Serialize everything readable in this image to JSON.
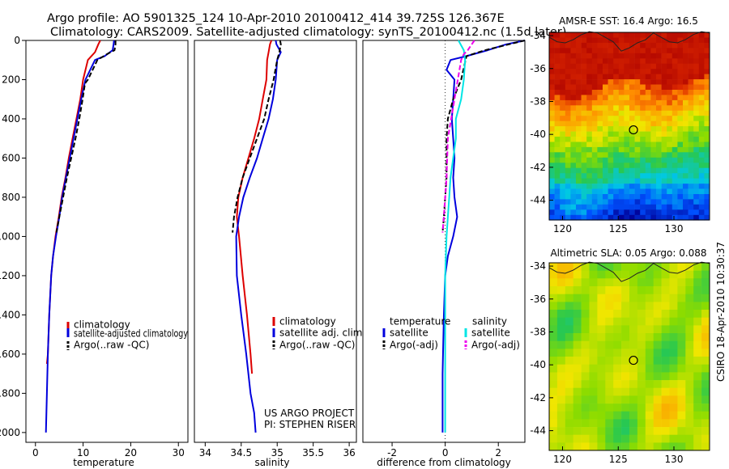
{
  "figure": {
    "title_line1": "Argo profile: AO 5901325_124 10-Apr-2010 20100412_414 39.725S 126.367E",
    "title_line2": "Climatology: CARS2009. Satellite-adjusted climatology: synTS_20100412.nc (1.5d later)",
    "credit_project": "US ARGO PROJECT",
    "credit_pi": "PI: STEPHEN RISER",
    "timestamp": "CSIRO 18-Apr-2010 10:30:37"
  },
  "colors": {
    "climatology": "#dd0000",
    "satellite": "#0000dd",
    "argo": "#000000",
    "sal_satellite": "#00e5e5",
    "sal_argo": "#ee00ee"
  },
  "chart_data": [
    {
      "type": "line",
      "id": "temperature",
      "xlabel": "temperature",
      "xlim": [
        -2,
        32
      ],
      "ylim": [
        2050,
        0
      ],
      "xticks": [
        "0",
        "10",
        "20",
        "30"
      ],
      "xtick_values": [
        0,
        10,
        20,
        30
      ],
      "yticks": [
        "0",
        "200",
        "400",
        "600",
        "800",
        "1000",
        "1200",
        "1400",
        "1600",
        "1800",
        "2000"
      ],
      "ytick_values": [
        0,
        200,
        400,
        600,
        800,
        1000,
        1200,
        1400,
        1600,
        1800,
        2000
      ],
      "legend": [
        "climatology",
        "satellite-adjusted climatology",
        "Argo(..raw -QC)"
      ],
      "series": [
        {
          "name": "climatology",
          "color": "climatology",
          "dash": false,
          "x": [
            13.6,
            13.2,
            12.5,
            11.0,
            10.0,
            9.4,
            8.6,
            7.8,
            7.0,
            6.3,
            5.5,
            4.9,
            4.2,
            3.7,
            3.3,
            2.9,
            2.6,
            2.4
          ],
          "y": [
            0,
            20,
            60,
            100,
            200,
            300,
            400,
            500,
            600,
            700,
            800,
            900,
            1000,
            1100,
            1200,
            1400,
            1600,
            1650
          ]
        },
        {
          "name": "satellite",
          "color": "satellite",
          "dash": false,
          "x": [
            16.5,
            16.4,
            16.2,
            14.5,
            12.5,
            10.5,
            9.6,
            8.8,
            8.0,
            7.2,
            6.4,
            5.6,
            5.0,
            4.3,
            3.7,
            3.3,
            2.9,
            2.6,
            2.4,
            2.2
          ],
          "y": [
            0,
            20,
            50,
            80,
            100,
            200,
            300,
            400,
            500,
            600,
            700,
            800,
            900,
            1000,
            1100,
            1200,
            1400,
            1600,
            1800,
            2000
          ]
        },
        {
          "name": "argo",
          "color": "argo",
          "dash": true,
          "x": [
            16.8,
            16.8,
            16.6,
            15.0,
            13.0,
            11.0,
            10.4,
            9.9,
            9.2,
            8.4,
            7.5,
            6.6,
            5.8,
            5.0,
            4.4
          ],
          "y": [
            0,
            20,
            50,
            70,
            100,
            200,
            220,
            300,
            400,
            500,
            600,
            700,
            800,
            900,
            980
          ]
        }
      ]
    },
    {
      "type": "line",
      "id": "salinity",
      "xlabel": "salinity",
      "xlim": [
        33.85,
        36.1
      ],
      "ylim": [
        2050,
        0
      ],
      "xticks": [
        "34",
        "34.5",
        "35",
        "35.5",
        "36"
      ],
      "xtick_values": [
        34,
        34.5,
        35,
        35.5,
        36
      ],
      "legend": [
        "climatology",
        "satellite adj. clim.",
        "Argo(..raw -QC)"
      ],
      "series": [
        {
          "name": "climatology",
          "color": "climatology",
          "dash": false,
          "x": [
            34.92,
            34.9,
            34.88,
            34.86,
            34.85,
            34.8,
            34.75,
            34.68,
            34.6,
            34.52,
            34.46,
            34.44,
            34.47,
            34.52,
            34.58,
            34.63,
            34.65
          ],
          "y": [
            0,
            20,
            60,
            100,
            200,
            300,
            400,
            500,
            600,
            700,
            800,
            900,
            1000,
            1200,
            1400,
            1600,
            1700
          ]
        },
        {
          "name": "satellite",
          "color": "satellite",
          "dash": false,
          "x": [
            34.98,
            34.99,
            35.05,
            35.0,
            34.98,
            34.94,
            34.88,
            34.8,
            34.72,
            34.62,
            34.53,
            34.47,
            34.43,
            34.44,
            34.5,
            34.57,
            34.63,
            34.68,
            34.7
          ],
          "y": [
            0,
            20,
            60,
            100,
            200,
            300,
            400,
            500,
            600,
            700,
            800,
            900,
            1000,
            1200,
            1400,
            1600,
            1800,
            1900,
            2000
          ]
        },
        {
          "name": "argo",
          "color": "argo",
          "dash": true,
          "x": [
            35.04,
            35.05,
            35.03,
            35.0,
            34.95,
            34.88,
            34.82,
            34.72,
            34.62,
            34.52,
            34.45,
            34.4,
            34.38
          ],
          "y": [
            0,
            20,
            60,
            100,
            200,
            300,
            400,
            500,
            600,
            700,
            800,
            900,
            980
          ]
        }
      ]
    },
    {
      "type": "line",
      "id": "difference",
      "xlabel": "difference from climatology",
      "xlim": [
        -3.1,
        3.0
      ],
      "ylim": [
        2050,
        0
      ],
      "xticks": [
        "-2",
        "0",
        "2"
      ],
      "xtick_values": [
        -2,
        0,
        2
      ],
      "legend_headers": [
        "temperature",
        "salinity"
      ],
      "legend": [
        "satellite",
        "Argo(-adj)",
        "satellite",
        "Argo(-adj)"
      ],
      "series": [
        {
          "name": "temperature satellite",
          "color": "satellite",
          "dash": false,
          "x": [
            3.0,
            2.3,
            1.6,
            0.8,
            0.2,
            0.05,
            0.35,
            0.3,
            0.25,
            0.3,
            0.35,
            0.3,
            0.35,
            0.45,
            0.3,
            0.1,
            0.0,
            -0.05,
            -0.1,
            -0.1
          ],
          "y": [
            0,
            20,
            50,
            80,
            100,
            150,
            200,
            300,
            400,
            500,
            600,
            700,
            800,
            900,
            1000,
            1100,
            1200,
            1400,
            1700,
            2000
          ]
        },
        {
          "name": "temperature argo",
          "color": "argo",
          "dash": true,
          "x": [
            3.0,
            2.4,
            1.5,
            0.8,
            0.6,
            0.3,
            0.1,
            0.05,
            0.05,
            0.05,
            0.0,
            -0.05,
            -0.1
          ],
          "y": [
            0,
            20,
            50,
            80,
            200,
            300,
            400,
            500,
            600,
            700,
            800,
            900,
            980
          ]
        },
        {
          "name": "salinity satellite",
          "color": "sal_satellite",
          "dash": false,
          "x": [
            0.5,
            0.7,
            0.75,
            0.7,
            0.6,
            0.4,
            0.4,
            0.3,
            0.2,
            0.15,
            0.1,
            0.05,
            0.0,
            0.0,
            0.0
          ],
          "y": [
            0,
            50,
            100,
            200,
            300,
            400,
            500,
            600,
            700,
            800,
            900,
            1000,
            1200,
            1600,
            2000
          ]
        },
        {
          "name": "salinity argo",
          "color": "sal_argo",
          "dash": true,
          "x": [
            1.1,
            1.0,
            0.85,
            0.7,
            0.6,
            0.35,
            0.1,
            0.05,
            -0.05,
            -0.1
          ],
          "y": [
            0,
            20,
            50,
            70,
            100,
            300,
            500,
            700,
            900,
            980
          ]
        }
      ]
    },
    {
      "type": "heatmap",
      "id": "sst_map",
      "title": "AMSR-E SST: 16.4 Argo: 16.5",
      "xlim": [
        118.8,
        133.2
      ],
      "ylim": [
        -45.2,
        -33.8
      ],
      "xticks": [
        "120",
        "125",
        "130"
      ],
      "xtick_values": [
        120,
        125,
        130
      ],
      "yticks": [
        "-34",
        "-36",
        "-38",
        "-40",
        "-42",
        "-44"
      ],
      "ytick_values": [
        -34,
        -36,
        -38,
        -40,
        -42,
        -44
      ],
      "marker": {
        "lon": 126.367,
        "lat": -39.725
      }
    },
    {
      "type": "heatmap",
      "id": "sla_map",
      "title": "Altimetric SLA: 0.05 Argo: 0.088",
      "xlim": [
        118.8,
        133.2
      ],
      "ylim": [
        -45.2,
        -33.8
      ],
      "xticks": [
        "120",
        "125",
        "130"
      ],
      "xtick_values": [
        120,
        125,
        130
      ],
      "yticks": [
        "-34",
        "-36",
        "-38",
        "-40",
        "-42",
        "-44"
      ],
      "ytick_values": [
        -34,
        -36,
        -38,
        -40,
        -42,
        -44
      ],
      "marker": {
        "lon": 126.367,
        "lat": -39.725
      }
    }
  ]
}
